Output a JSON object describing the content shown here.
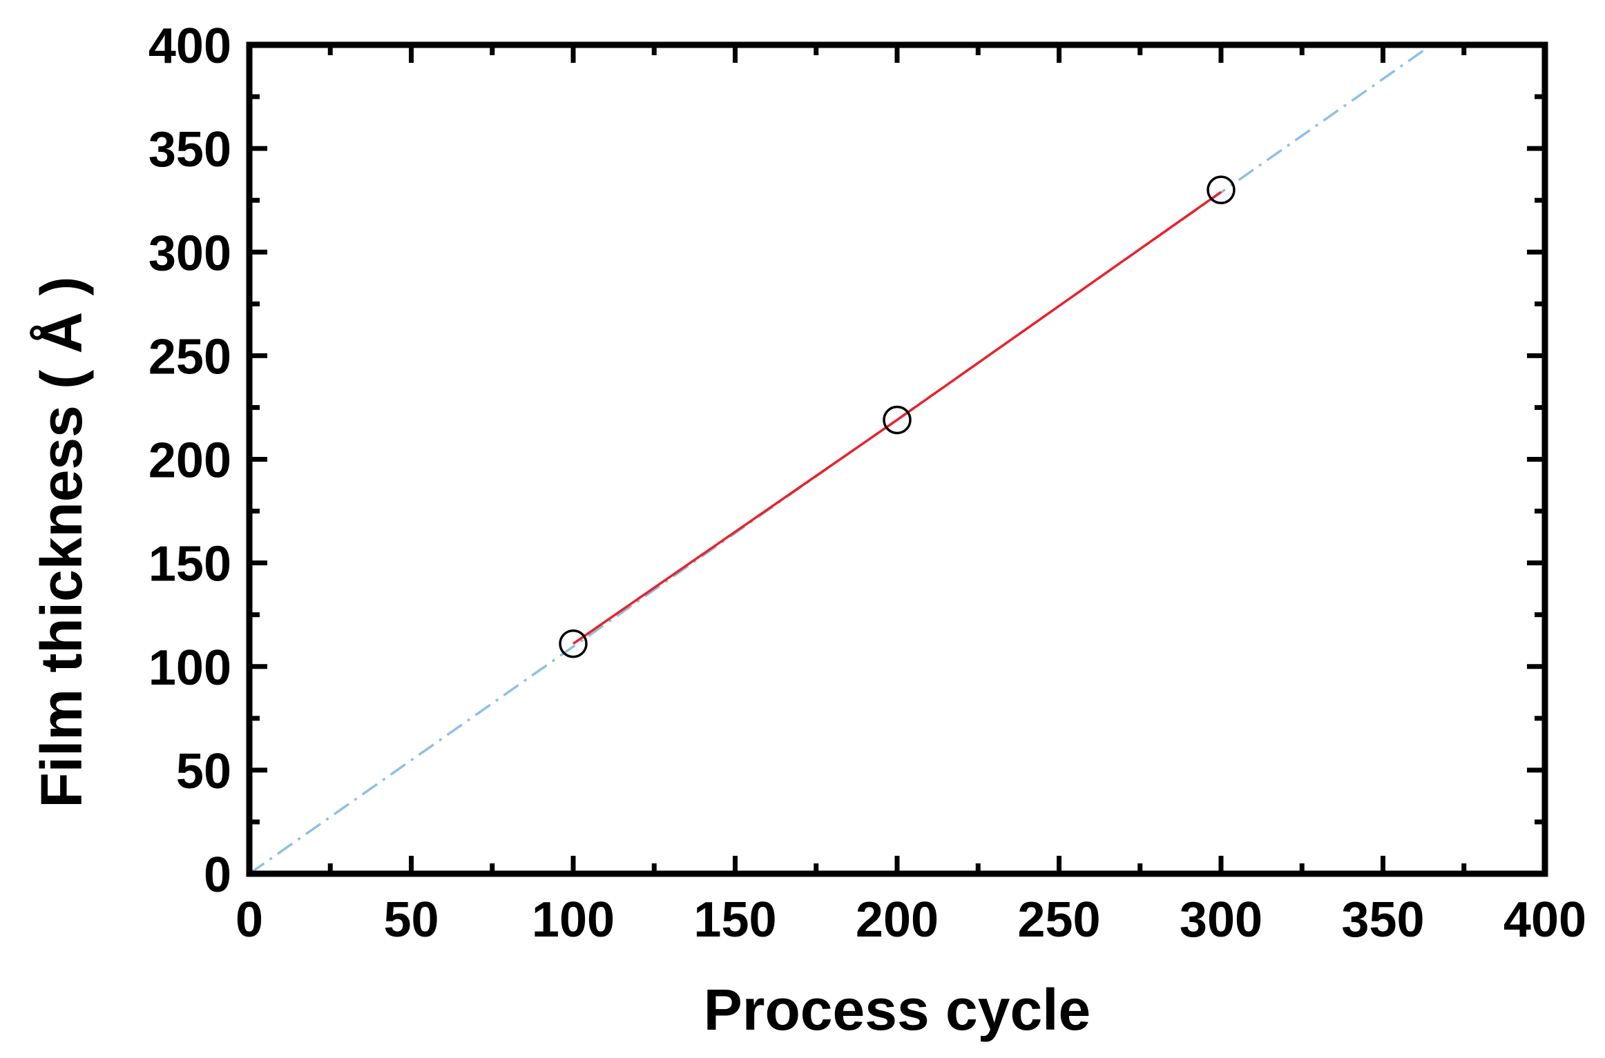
{
  "chart_data": {
    "type": "scatter",
    "xlabel": "Process cycle",
    "ylabel": "Film thickness ( Å )",
    "xlim": [
      0,
      400
    ],
    "ylim": [
      0,
      400
    ],
    "xticks": [
      "0",
      "50",
      "100",
      "150",
      "200",
      "250",
      "300",
      "350",
      "400"
    ],
    "yticks": [
      "0",
      "50",
      "100",
      "150",
      "200",
      "250",
      "300",
      "350",
      "400"
    ],
    "grid": false,
    "series": [
      {
        "kind": "markers",
        "marker": "open-circle",
        "color": "#000000",
        "x": [
          100,
          200,
          300
        ],
        "y": [
          111,
          219,
          330
        ]
      },
      {
        "kind": "line",
        "color": "#e8232a",
        "x": [
          100,
          200,
          300
        ],
        "y": [
          111,
          219,
          329
        ]
      },
      {
        "kind": "dash-dot-line",
        "color": "#8fbfe6",
        "x": [
          0,
          365
        ],
        "y": [
          0,
          400
        ]
      }
    ]
  }
}
